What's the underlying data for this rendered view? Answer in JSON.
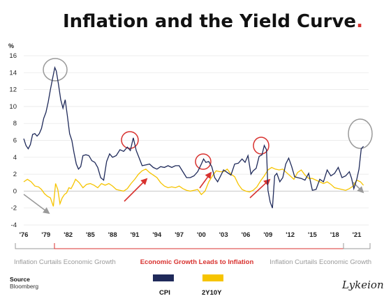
{
  "chart_data": {
    "type": "line",
    "title": "Inflation and the Yield Curve",
    "title_dot": ".",
    "y_unit": "%",
    "ylim": [
      -4,
      16
    ],
    "yticks": [
      -4,
      -2,
      0,
      2,
      4,
      6,
      8,
      10,
      12,
      14,
      16
    ],
    "xlim": [
      1976,
      2022.6
    ],
    "xticks": [
      {
        "x": 1976,
        "label": "'76"
      },
      {
        "x": 1979,
        "label": "'79"
      },
      {
        "x": 1982,
        "label": "'82"
      },
      {
        "x": 1985,
        "label": "'85"
      },
      {
        "x": 1988,
        "label": "'88"
      },
      {
        "x": 1991,
        "label": "'91"
      },
      {
        "x": 1994,
        "label": "'94"
      },
      {
        "x": 1997,
        "label": "'97"
      },
      {
        "x": 2000,
        "label": "'00"
      },
      {
        "x": 2003,
        "label": "'03"
      },
      {
        "x": 2006,
        "label": "'06"
      },
      {
        "x": 2009,
        "label": "'09"
      },
      {
        "x": 2012,
        "label": "'12"
      },
      {
        "x": 2015,
        "label": "'15"
      },
      {
        "x": 2018,
        "label": "'18"
      },
      {
        "x": 2021,
        "label": "'21"
      }
    ],
    "legend_placement": "bottom-center",
    "series": [
      {
        "name": "CPI",
        "color": "#1f2a5a",
        "x": [
          1976.0,
          1976.3,
          1976.6,
          1976.9,
          1977.2,
          1977.5,
          1977.8,
          1978.1,
          1978.4,
          1978.7,
          1979.0,
          1979.3,
          1979.6,
          1979.9,
          1980.2,
          1980.4,
          1980.7,
          1981.0,
          1981.3,
          1981.6,
          1981.9,
          1982.2,
          1982.5,
          1982.8,
          1983.1,
          1983.4,
          1983.7,
          1984.0,
          1984.4,
          1984.8,
          1985.2,
          1985.6,
          1986.0,
          1986.4,
          1986.8,
          1987.2,
          1987.6,
          1988.0,
          1988.5,
          1989.0,
          1989.5,
          1990.0,
          1990.4,
          1990.8,
          1991.2,
          1991.6,
          1992.0,
          1992.5,
          1993.0,
          1993.5,
          1994.0,
          1994.5,
          1995.0,
          1995.5,
          1996.0,
          1996.5,
          1997.0,
          1997.5,
          1998.0,
          1998.5,
          1999.0,
          1999.5,
          2000.0,
          2000.3,
          2000.6,
          2001.0,
          2001.4,
          2001.8,
          2002.2,
          2002.6,
          2003.0,
          2003.5,
          2004.0,
          2004.5,
          2005.0,
          2005.5,
          2005.9,
          2006.3,
          2006.7,
          2007.0,
          2007.4,
          2007.8,
          2008.2,
          2008.5,
          2008.8,
          2009.0,
          2009.3,
          2009.6,
          2009.9,
          2010.2,
          2010.6,
          2011.0,
          2011.4,
          2011.8,
          2012.2,
          2012.6,
          2013.0,
          2013.5,
          2014.0,
          2014.5,
          2015.0,
          2015.5,
          2016.0,
          2016.5,
          2017.0,
          2017.5,
          2018.0,
          2018.5,
          2019.0,
          2019.5,
          2020.0,
          2020.3,
          2020.6,
          2021.0,
          2021.3,
          2021.6,
          2021.9
        ],
        "values": [
          6.2,
          5.4,
          5.0,
          5.5,
          6.7,
          6.8,
          6.5,
          6.8,
          7.4,
          8.6,
          9.3,
          10.5,
          12.0,
          13.3,
          14.6,
          14.2,
          12.6,
          10.8,
          9.8,
          10.8,
          8.9,
          6.8,
          6.0,
          4.5,
          3.2,
          2.6,
          2.9,
          4.2,
          4.3,
          4.2,
          3.6,
          3.4,
          2.8,
          1.6,
          1.3,
          3.5,
          4.4,
          4.0,
          4.2,
          4.9,
          4.7,
          5.2,
          4.8,
          6.3,
          4.8,
          3.9,
          3.0,
          3.1,
          3.2,
          2.8,
          2.6,
          2.9,
          2.8,
          3.0,
          2.8,
          3.0,
          3.0,
          2.3,
          1.6,
          1.6,
          1.8,
          2.3,
          3.2,
          3.8,
          3.4,
          3.5,
          2.9,
          1.6,
          1.1,
          1.8,
          2.5,
          2.2,
          1.9,
          3.2,
          3.3,
          3.8,
          3.4,
          4.2,
          2.0,
          2.4,
          2.7,
          4.1,
          4.3,
          5.4,
          4.9,
          0.1,
          -1.3,
          -2.0,
          1.8,
          2.1,
          1.1,
          1.6,
          3.2,
          3.9,
          2.9,
          1.7,
          1.6,
          1.5,
          1.3,
          2.1,
          0.1,
          0.2,
          1.4,
          1.1,
          2.5,
          1.8,
          2.1,
          2.8,
          1.6,
          1.8,
          2.3,
          1.5,
          0.3,
          1.4,
          2.6,
          5.0,
          5.3
        ]
      },
      {
        "name": "2Y10Y",
        "color": "#f6c400",
        "x": [
          1976.0,
          1976.5,
          1977.0,
          1977.5,
          1978.0,
          1978.4,
          1978.8,
          1979.2,
          1979.6,
          1980.0,
          1980.3,
          1980.6,
          1980.9,
          1981.2,
          1981.5,
          1981.8,
          1982.1,
          1982.4,
          1982.7,
          1983.0,
          1983.5,
          1984.0,
          1984.5,
          1985.0,
          1985.5,
          1986.0,
          1986.5,
          1987.0,
          1987.5,
          1988.0,
          1988.5,
          1989.0,
          1989.5,
          1990.0,
          1990.5,
          1991.0,
          1991.5,
          1992.0,
          1992.5,
          1993.0,
          1993.5,
          1994.0,
          1994.5,
          1995.0,
          1995.5,
          1996.0,
          1996.5,
          1997.0,
          1997.5,
          1998.0,
          1998.5,
          1999.0,
          1999.5,
          2000.0,
          2000.5,
          2001.0,
          2001.5,
          2002.0,
          2002.5,
          2003.0,
          2003.5,
          2004.0,
          2004.5,
          2005.0,
          2005.5,
          2006.0,
          2006.5,
          2007.0,
          2007.5,
          2008.0,
          2008.5,
          2009.0,
          2009.5,
          2010.0,
          2010.5,
          2011.0,
          2011.5,
          2012.0,
          2012.5,
          2013.0,
          2013.5,
          2014.0,
          2014.5,
          2015.0,
          2015.5,
          2016.0,
          2016.5,
          2017.0,
          2017.5,
          2018.0,
          2018.5,
          2019.0,
          2019.5,
          2020.0,
          2020.5,
          2021.0,
          2021.5,
          2021.9
        ],
        "values": [
          1.1,
          1.4,
          1.1,
          0.6,
          0.5,
          0.2,
          -0.3,
          -0.6,
          -0.8,
          -1.8,
          0.9,
          0.2,
          -1.5,
          -0.8,
          -0.4,
          -0.2,
          0.4,
          0.3,
          0.8,
          1.4,
          1.0,
          0.4,
          0.8,
          0.9,
          0.7,
          0.4,
          0.9,
          0.7,
          0.9,
          0.6,
          0.2,
          0.1,
          0.0,
          0.3,
          0.9,
          1.4,
          2.0,
          2.4,
          2.6,
          2.2,
          1.9,
          1.6,
          1.0,
          0.6,
          0.4,
          0.5,
          0.4,
          0.6,
          0.3,
          0.1,
          0.0,
          0.1,
          0.2,
          -0.4,
          0.0,
          1.1,
          1.8,
          2.4,
          2.3,
          2.3,
          2.6,
          2.0,
          1.7,
          0.8,
          0.2,
          0.0,
          -0.1,
          0.1,
          0.5,
          1.2,
          1.8,
          2.5,
          2.8,
          2.6,
          2.5,
          2.6,
          2.2,
          1.8,
          1.4,
          2.2,
          2.5,
          1.9,
          1.5,
          1.5,
          1.3,
          1.1,
          0.9,
          1.1,
          0.8,
          0.4,
          0.3,
          0.2,
          0.1,
          0.3,
          0.6,
          1.3,
          1.1,
          0.7
        ]
      }
    ],
    "annotations": {
      "left": "Inflation Curtails Economic Growth",
      "middle": "Economic Growth Leads to Inflation",
      "right": "Inflation Curtails Economic Growth"
    },
    "source_label": "Source",
    "source_value": "Bloomberg",
    "logo": "Lykeion"
  }
}
